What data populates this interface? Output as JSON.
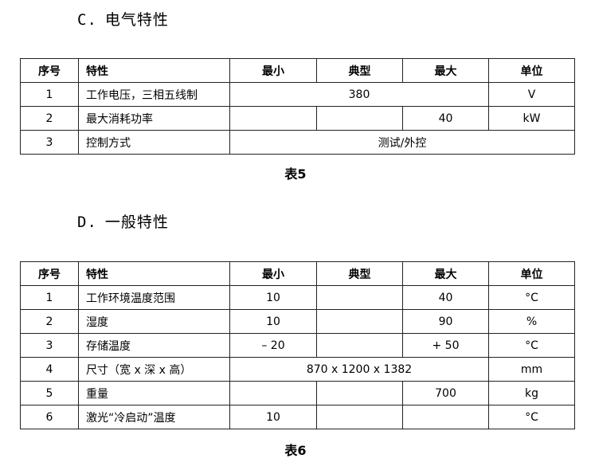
{
  "section_c": {
    "code": "C.",
    "title": "电气特性",
    "headers": [
      "序号",
      "特性",
      "最小",
      "典型",
      "最大",
      "单位"
    ],
    "rows": [
      {
        "no": "1",
        "feature": "工作电压，三相五线制",
        "merged_value": "380",
        "unit": "V"
      },
      {
        "no": "2",
        "feature": "最大消耗功率",
        "min": "",
        "typ": "",
        "max": "40",
        "unit": "kW"
      },
      {
        "no": "3",
        "feature": "控制方式",
        "merged_value": "测试/外控"
      }
    ],
    "caption": "表5"
  },
  "section_d": {
    "code": "D.",
    "title": "一般特性",
    "headers": [
      "序号",
      "特性",
      "最小",
      "典型",
      "最大",
      "单位"
    ],
    "rows": [
      {
        "no": "1",
        "feature": "工作环境温度范围",
        "min": "10",
        "typ": "",
        "max": "40",
        "unit": "°C"
      },
      {
        "no": "2",
        "feature": "湿度",
        "min": "10",
        "typ": "",
        "max": "90",
        "unit": "%"
      },
      {
        "no": "3",
        "feature": "存储温度",
        "min": "– 20",
        "typ": "",
        "max": "+ 50",
        "unit": "°C"
      },
      {
        "no": "4",
        "feature": "尺寸（宽 x 深 x 高）",
        "merged_value": "870 x 1200 x 1382",
        "unit": "mm"
      },
      {
        "no": "5",
        "feature": "重量",
        "min": "",
        "typ": "",
        "max": "700",
        "unit": "kg"
      },
      {
        "no": "6",
        "feature": "激光“冷启动”温度",
        "min": "10",
        "typ": "",
        "max": "",
        "unit": "°C"
      }
    ],
    "caption": "表6"
  }
}
